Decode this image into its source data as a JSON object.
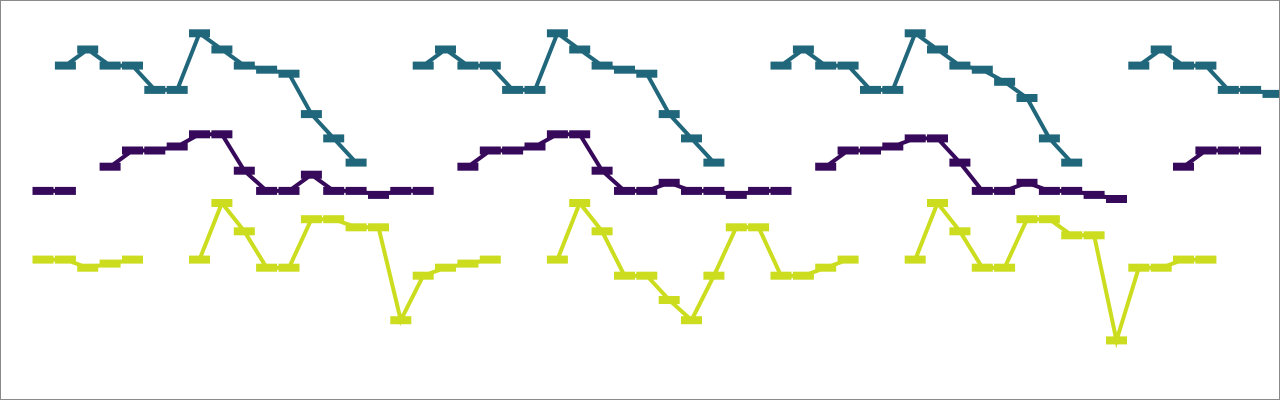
{
  "chart_data": {
    "type": "line",
    "title": "",
    "xlabel": "",
    "ylabel": "",
    "grid": false,
    "legend": "none",
    "x": [
      0,
      1,
      2,
      3,
      4,
      5,
      6,
      7,
      8,
      9,
      10,
      11,
      12,
      13,
      14,
      15,
      16,
      17,
      18,
      19,
      20,
      21,
      22,
      23,
      24,
      25,
      26,
      27,
      28,
      29,
      30,
      31,
      32,
      33,
      34,
      35,
      36,
      37,
      38,
      39,
      40,
      41,
      42,
      43,
      44,
      45,
      46,
      47,
      48,
      49,
      50,
      51,
      52,
      53,
      54,
      55
    ],
    "series": [
      {
        "color": "#21677c",
        "segments": [
          {
            "points": [
              [
                1,
                6.3
              ],
              [
                2,
                6.7
              ],
              [
                3,
                6.3
              ],
              [
                4,
                6.3
              ],
              [
                5,
                5.7
              ],
              [
                6,
                5.7
              ],
              [
                7,
                7.1
              ],
              [
                8,
                6.7
              ],
              [
                9,
                6.3
              ],
              [
                10,
                6.2
              ],
              [
                11,
                6.1
              ],
              [
                12,
                5.1
              ],
              [
                13,
                4.5
              ],
              [
                14,
                3.9
              ]
            ]
          },
          {
            "points": [
              [
                17,
                6.3
              ],
              [
                18,
                6.7
              ],
              [
                19,
                6.3
              ],
              [
                20,
                6.3
              ],
              [
                21,
                5.7
              ],
              [
                22,
                5.7
              ],
              [
                23,
                7.1
              ],
              [
                24,
                6.7
              ],
              [
                25,
                6.3
              ],
              [
                26,
                6.2
              ],
              [
                27,
                6.1
              ],
              [
                28,
                5.1
              ],
              [
                29,
                4.5
              ],
              [
                30,
                3.9
              ]
            ]
          },
          {
            "points": [
              [
                33,
                6.3
              ],
              [
                34,
                6.7
              ],
              [
                35,
                6.3
              ],
              [
                36,
                6.3
              ],
              [
                37,
                5.7
              ],
              [
                38,
                5.7
              ],
              [
                39,
                7.1
              ],
              [
                40,
                6.7
              ],
              [
                41,
                6.3
              ],
              [
                42,
                6.2
              ],
              [
                43,
                5.9
              ],
              [
                44,
                5.5
              ],
              [
                45,
                4.5
              ],
              [
                46,
                3.9
              ]
            ]
          },
          {
            "points": [
              [
                49,
                6.3
              ],
              [
                50,
                6.7
              ],
              [
                51,
                6.3
              ],
              [
                52,
                6.3
              ],
              [
                53,
                5.7
              ],
              [
                54,
                5.7
              ],
              [
                55,
                5.6
              ]
            ]
          }
        ]
      },
      {
        "color": "#37095b",
        "segments": [
          {
            "points": [
              [
                0,
                3.2
              ],
              [
                1,
                3.2
              ]
            ]
          },
          {
            "points": [
              [
                3,
                3.8
              ],
              [
                4,
                4.2
              ],
              [
                5,
                4.2
              ],
              [
                6,
                4.3
              ],
              [
                7,
                4.6
              ],
              [
                8,
                4.6
              ],
              [
                9,
                3.7
              ],
              [
                10,
                3.2
              ],
              [
                11,
                3.2
              ],
              [
                12,
                3.6
              ],
              [
                13,
                3.2
              ],
              [
                14,
                3.2
              ],
              [
                15,
                3.1
              ],
              [
                16,
                3.2
              ],
              [
                17,
                3.2
              ]
            ]
          },
          {
            "points": [
              [
                19,
                3.8
              ],
              [
                20,
                4.2
              ],
              [
                21,
                4.2
              ],
              [
                22,
                4.3
              ],
              [
                23,
                4.6
              ],
              [
                24,
                4.6
              ],
              [
                25,
                3.7
              ],
              [
                26,
                3.2
              ],
              [
                27,
                3.2
              ],
              [
                28,
                3.4
              ],
              [
                29,
                3.2
              ],
              [
                30,
                3.2
              ],
              [
                31,
                3.1
              ],
              [
                32,
                3.2
              ],
              [
                33,
                3.2
              ]
            ]
          },
          {
            "points": [
              [
                35,
                3.8
              ],
              [
                36,
                4.2
              ],
              [
                37,
                4.2
              ],
              [
                38,
                4.3
              ],
              [
                39,
                4.5
              ],
              [
                40,
                4.5
              ],
              [
                41,
                3.9
              ],
              [
                42,
                3.2
              ],
              [
                43,
                3.2
              ],
              [
                44,
                3.4
              ],
              [
                45,
                3.2
              ],
              [
                46,
                3.2
              ],
              [
                47,
                3.1
              ],
              [
                48,
                3.0
              ]
            ]
          },
          {
            "points": [
              [
                51,
                3.8
              ],
              [
                52,
                4.2
              ],
              [
                53,
                4.2
              ],
              [
                54,
                4.2
              ]
            ]
          }
        ]
      },
      {
        "color": "#cbdd1e",
        "segments": [
          {
            "points": [
              [
                0,
                1.5
              ],
              [
                1,
                1.5
              ],
              [
                2,
                1.3
              ],
              [
                3,
                1.4
              ],
              [
                4,
                1.5
              ]
            ]
          },
          {
            "points": [
              [
                7,
                1.5
              ],
              [
                8,
                2.9
              ],
              [
                9,
                2.2
              ],
              [
                10,
                1.3
              ],
              [
                11,
                1.3
              ],
              [
                12,
                2.5
              ],
              [
                13,
                2.5
              ],
              [
                14,
                2.3
              ],
              [
                15,
                2.3
              ],
              [
                16,
                0.0
              ],
              [
                17,
                1.1
              ],
              [
                18,
                1.3
              ],
              [
                19,
                1.4
              ],
              [
                20,
                1.5
              ]
            ]
          },
          {
            "points": [
              [
                23,
                1.5
              ],
              [
                24,
                2.9
              ],
              [
                25,
                2.2
              ],
              [
                26,
                1.1
              ],
              [
                27,
                1.1
              ],
              [
                28,
                0.5
              ],
              [
                29,
                0.0
              ],
              [
                30,
                1.1
              ],
              [
                31,
                2.3
              ],
              [
                32,
                2.3
              ],
              [
                33,
                1.1
              ],
              [
                34,
                1.1
              ],
              [
                35,
                1.3
              ],
              [
                36,
                1.5
              ]
            ]
          },
          {
            "points": [
              [
                39,
                1.5
              ],
              [
                40,
                2.9
              ],
              [
                41,
                2.2
              ],
              [
                42,
                1.3
              ],
              [
                43,
                1.3
              ],
              [
                44,
                2.5
              ],
              [
                45,
                2.5
              ],
              [
                46,
                2.1
              ],
              [
                47,
                2.1
              ],
              [
                48,
                -0.5
              ],
              [
                49,
                1.3
              ],
              [
                50,
                1.3
              ],
              [
                51,
                1.5
              ],
              [
                52,
                1.5
              ]
            ]
          }
        ]
      }
    ],
    "xlim": [
      0,
      55
    ],
    "ylim": [
      -2.0,
      7.9
    ]
  }
}
